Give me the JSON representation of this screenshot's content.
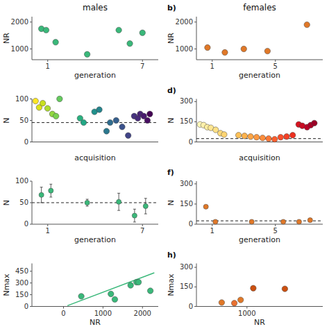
{
  "chart_data": [
    {
      "type": "scatter",
      "title": "males",
      "xlabel": "generation",
      "ylabel": "NR",
      "x": [
        0.6,
        0.9,
        1.5,
        3.5,
        5.5,
        6.2,
        7.0
      ],
      "values": [
        1750,
        1700,
        1250,
        800,
        1700,
        1200,
        1600
      ],
      "color": "#3ab87a",
      "xlim": [
        0,
        8
      ],
      "ylim": [
        600,
        2200
      ],
      "xticks": [
        1,
        7
      ],
      "yticks": [
        1000,
        2000
      ],
      "grid": false
    },
    {
      "type": "scatter",
      "title": "females",
      "annotation": "b)",
      "xlabel": "generation",
      "ylabel": "NR",
      "x": [
        0.7,
        1.8,
        3.0,
        4.5,
        7.0
      ],
      "values": [
        1050,
        870,
        1000,
        920,
        1900
      ],
      "color": "#e07828",
      "xlim": [
        0,
        8
      ],
      "ylim": [
        600,
        2200
      ],
      "xticks": [
        1,
        5
      ],
      "yticks": [
        1000,
        2000
      ],
      "grid": false
    },
    {
      "type": "scatter",
      "xlabel": "acquisition",
      "ylabel": "N",
      "x": [
        0.03,
        0.06,
        0.09,
        0.13,
        0.17,
        0.2,
        0.23,
        0.4,
        0.43,
        0.52,
        0.56,
        0.62,
        0.65,
        0.7,
        0.75,
        0.8,
        0.85,
        0.88,
        0.9,
        0.93,
        0.96,
        0.98
      ],
      "values": [
        95,
        80,
        90,
        78,
        65,
        60,
        100,
        55,
        45,
        70,
        75,
        25,
        45,
        50,
        35,
        15,
        60,
        55,
        65,
        60,
        50,
        65
      ],
      "colors": [
        "#fde725",
        "#dde318",
        "#c8e020",
        "#addc30",
        "#93d741",
        "#7ad151",
        "#65cb5e",
        "#2ab07f",
        "#22a785",
        "#21918c",
        "#25858e",
        "#2a788e",
        "#2f6c8e",
        "#355f8d",
        "#3b528b",
        "#414487",
        "#46337f",
        "#472a7a",
        "#482475",
        "#481a6c",
        "#470e61",
        "#440154"
      ],
      "reference_lines": [
        {
          "value": 45,
          "color": "#222222",
          "line_style": "dashed"
        }
      ],
      "xlim": [
        0,
        1.05
      ],
      "ylim": [
        0,
        100
      ],
      "xticks": [],
      "yticks": [
        0,
        50,
        100
      ],
      "tick_labels": "y",
      "grid": false
    },
    {
      "type": "scatter",
      "annotation": "d)",
      "xlabel": "acquisition",
      "ylabel": "N",
      "x": [
        0.03,
        0.06,
        0.09,
        0.12,
        0.16,
        0.2,
        0.23,
        0.35,
        0.4,
        0.45,
        0.5,
        0.55,
        0.6,
        0.65,
        0.7,
        0.75,
        0.8,
        0.85,
        0.88,
        0.92,
        0.95,
        0.98
      ],
      "values": [
        130,
        125,
        110,
        105,
        90,
        65,
        55,
        50,
        45,
        40,
        35,
        30,
        25,
        20,
        35,
        40,
        50,
        130,
        120,
        110,
        125,
        140
      ],
      "colors": [
        "#fff8bb",
        "#fff1ac",
        "#feeda0",
        "#fee692",
        "#fee186",
        "#fedb7b",
        "#fed471",
        "#fec158",
        "#feb24c",
        "#fea545",
        "#fd9840",
        "#fd8d3c",
        "#fc7835",
        "#fc5f2e",
        "#fc4e2a",
        "#f44025",
        "#ed3020",
        "#d9131f",
        "#ca0b23",
        "#bc0026",
        "#aa0026",
        "#9a0026"
      ],
      "reference_lines": [
        {
          "value": 25,
          "color": "#222222",
          "line_style": "dashed"
        }
      ],
      "xlim": [
        0,
        1.05
      ],
      "ylim": [
        0,
        320
      ],
      "xticks": [],
      "yticks": [
        0,
        150,
        300
      ],
      "tick_labels": "y",
      "grid": false
    },
    {
      "type": "scatter",
      "xlabel": "generation",
      "ylabel": "N",
      "x": [
        0.6,
        1.2,
        3.5,
        5.5,
        6.5,
        7.2
      ],
      "values": [
        68,
        78,
        50,
        52,
        20,
        42
      ],
      "errors": [
        18,
        15,
        8,
        20,
        15,
        18
      ],
      "color": "#3ab87a",
      "reference_lines": [
        {
          "value": 50,
          "color": "#222222",
          "line_style": "dashed"
        }
      ],
      "xlim": [
        0,
        8
      ],
      "ylim": [
        0,
        100
      ],
      "xticks": [
        1,
        7
      ],
      "yticks": [
        0,
        50,
        100
      ],
      "grid": false
    },
    {
      "type": "scatter",
      "annotation": "f)",
      "xlabel": "generation",
      "ylabel": "N",
      "x": [
        0.6,
        1.2,
        3.5,
        5.5,
        6.5,
        7.2
      ],
      "values": [
        130,
        18,
        18,
        18,
        18,
        30
      ],
      "errors": [
        5,
        5,
        4,
        5,
        4,
        5
      ],
      "color": "#e07828",
      "reference_lines": [
        {
          "value": 25,
          "color": "#222222",
          "line_style": "dashed"
        }
      ],
      "xlim": [
        0,
        8
      ],
      "ylim": [
        0,
        320
      ],
      "xticks": [
        1,
        5
      ],
      "yticks": [
        0,
        150,
        300
      ],
      "grid": false
    },
    {
      "type": "scatter",
      "xlabel": "NR",
      "ylabel": "Nmax",
      "series": [
        {
          "type": "scatter",
          "color": "#3ab87a",
          "x": [
            450,
            1200,
            1300,
            1700,
            1850,
            1900,
            2200
          ],
          "values": [
            130,
            160,
            90,
            270,
            310,
            310,
            200
          ]
        },
        {
          "type": "line",
          "color": "#3ab87a",
          "x": [
            100,
            2300
          ],
          "values": [
            10,
            430
          ]
        }
      ],
      "xlim": [
        -800,
        2400
      ],
      "ylim": [
        0,
        550
      ],
      "xticks": [
        0,
        1000,
        2000
      ],
      "yticks": [
        0,
        150,
        300,
        450
      ],
      "grid": false
    },
    {
      "type": "scatter",
      "annotation": "h)",
      "xlabel": "NR",
      "ylabel": "Nmax",
      "x": [
        800,
        900,
        950,
        1050,
        1300
      ],
      "values": [
        30,
        25,
        50,
        140,
        135
      ],
      "colors": [
        "#e07828",
        "#e87030",
        "#e07828",
        "#cc5010",
        "#cc5010"
      ],
      "xlim": [
        600,
        1600
      ],
      "ylim": [
        0,
        330
      ],
      "xticks": [
        1000
      ],
      "yticks": [
        0,
        150,
        300
      ],
      "grid": false
    }
  ]
}
